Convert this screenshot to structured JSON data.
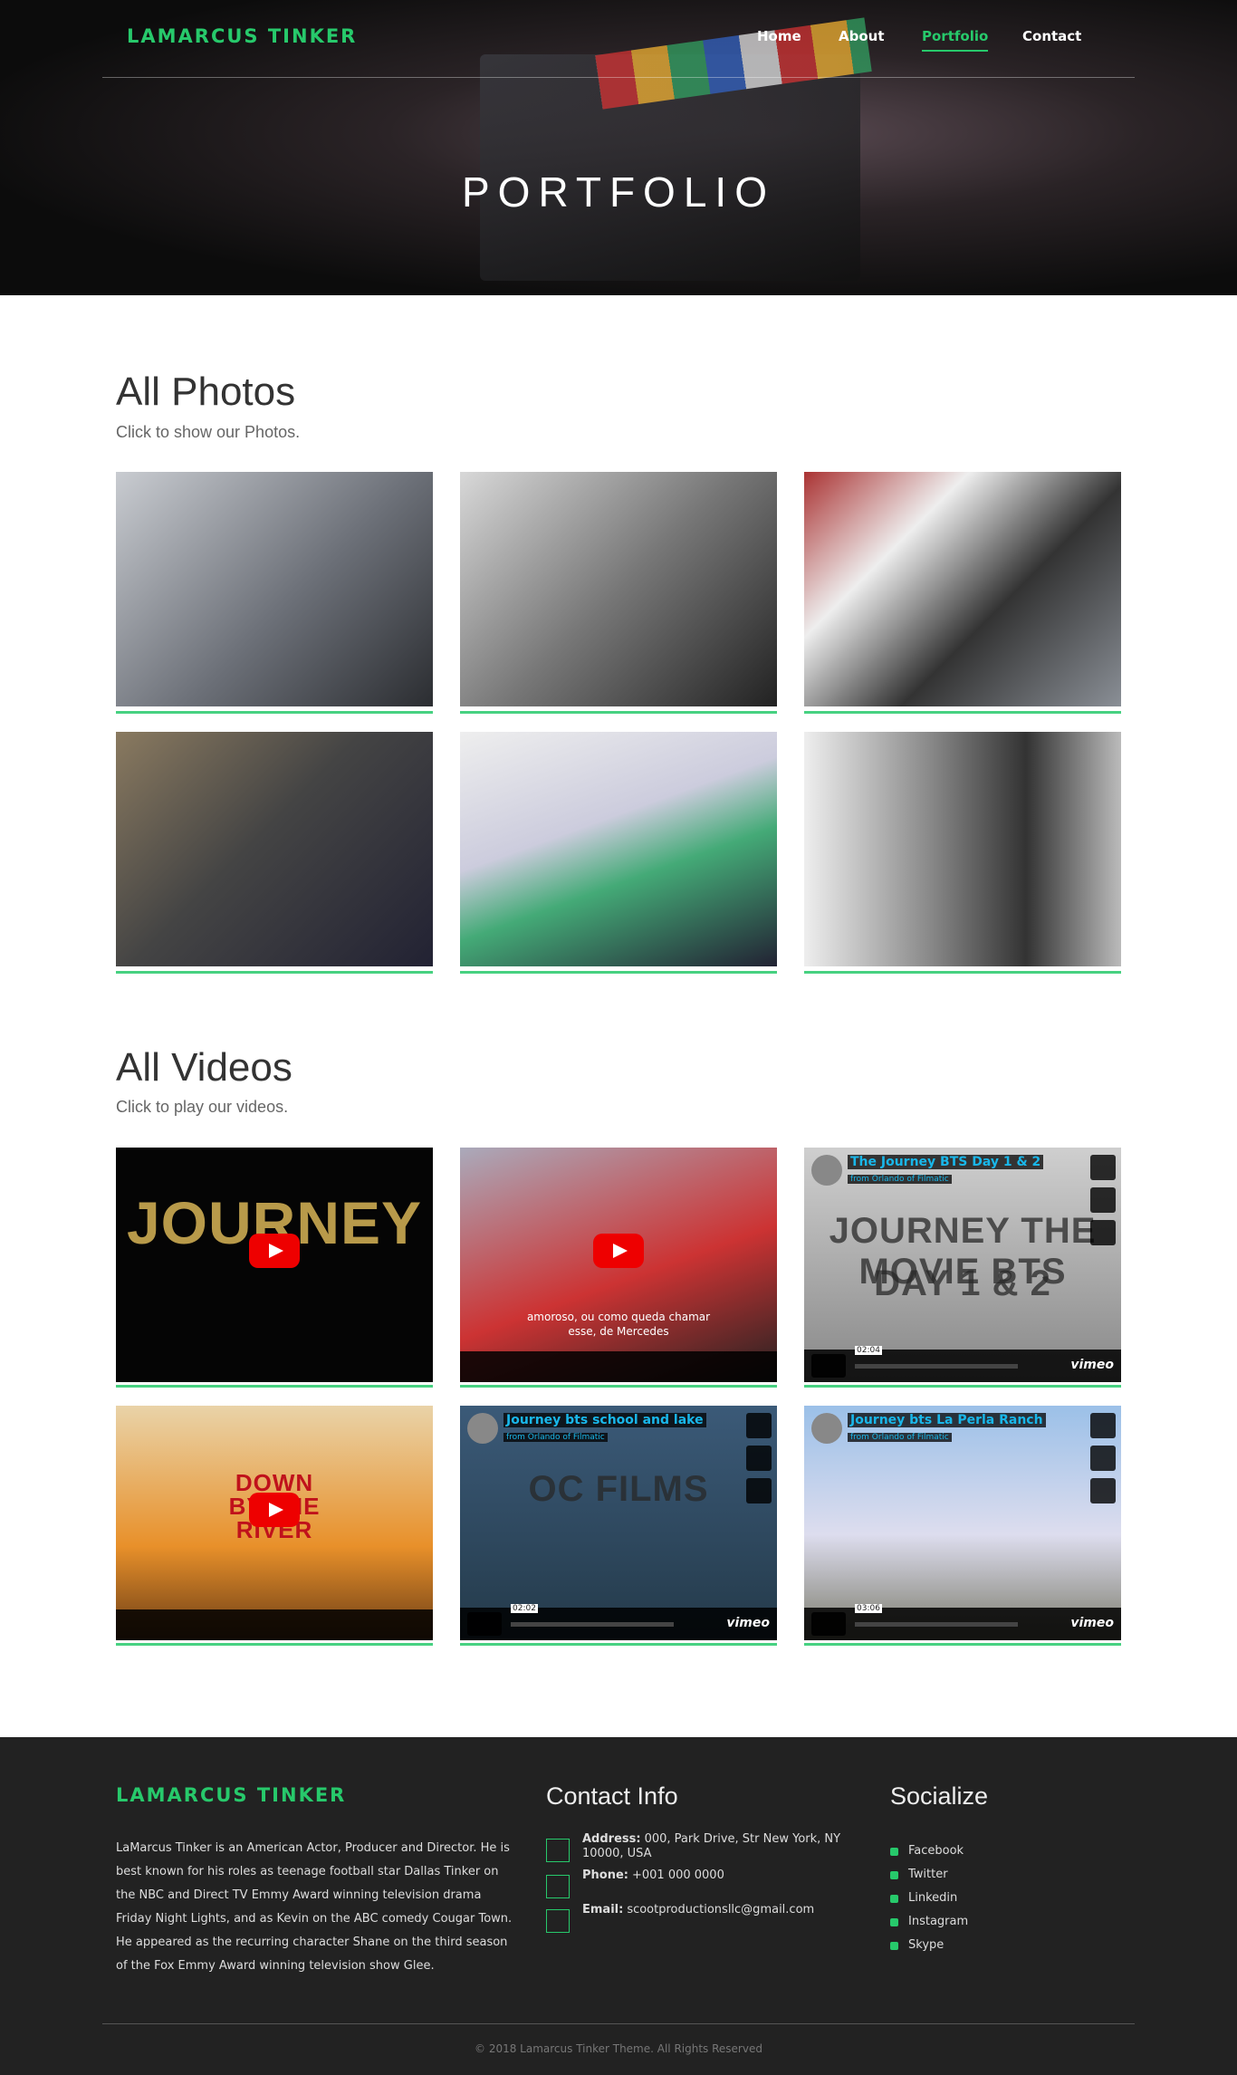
{
  "header": {
    "brand": "LAMARCUS TINKER",
    "nav": [
      "Home",
      "About",
      "Portfolio",
      "Contact"
    ],
    "active_index": 2
  },
  "hero": {
    "title": "PORTFOLIO"
  },
  "photos": {
    "title": "All Photos",
    "subtitle": "Click to show our Photos."
  },
  "videos": {
    "title": "All Videos",
    "subtitle": "Click to play our videos.",
    "items": [
      {
        "kind": "youtube",
        "poster": [
          "JOURNEY"
        ]
      },
      {
        "kind": "youtube",
        "caption": [
          "amoroso, ou como queda chamar",
          "esse, de Mercedes"
        ]
      },
      {
        "kind": "vimeo",
        "name": "The Journey BTS Day 1 & 2",
        "from": "from Orlando of Filmatic",
        "poster": [
          "JOURNEY THE MOVIE BTS",
          "DAY 1 & 2"
        ],
        "time": "02:04",
        "logo": "vimeo"
      },
      {
        "kind": "youtube",
        "poster": [
          "DOWN",
          "BY THE",
          "RIVER"
        ]
      },
      {
        "kind": "vimeo",
        "name": "Journey bts school and lake",
        "from": "from Orlando of Filmatic",
        "poster": [
          "OC FILMS"
        ],
        "time": "02:02",
        "logo": "vimeo"
      },
      {
        "kind": "vimeo",
        "name": "Journey bts La Perla Ranch",
        "from": "from Orlando of Filmatic",
        "poster": [],
        "time": "03:06",
        "logo": "vimeo"
      }
    ]
  },
  "footer": {
    "brand": "LAMARCUS TINKER",
    "about": "LaMarcus Tinker is an American Actor, Producer and Director. He is best known for his roles as teenage football star Dallas Tinker on the NBC and Direct TV Emmy Award winning television drama Friday Night Lights, and as Kevin on the ABC comedy Cougar Town. He appeared as the recurring character Shane on the third season of the Fox Emmy Award winning television show Glee.",
    "contact_title": "Contact Info",
    "contact": [
      {
        "label": "Address:",
        "text": "000, Park Drive, Str New York, NY 10000, USA"
      },
      {
        "label": "Phone:",
        "text": "+001 000 0000"
      },
      {
        "label": "Email:",
        "text": "scootproductionsllc@gmail.com"
      }
    ],
    "social_title": "Socialize",
    "social": [
      "Facebook",
      "Twitter",
      "Linkedin",
      "Instagram",
      "Skype"
    ],
    "copyright": "© 2018 Lamarcus Tinker Theme. All Rights Reserved"
  }
}
